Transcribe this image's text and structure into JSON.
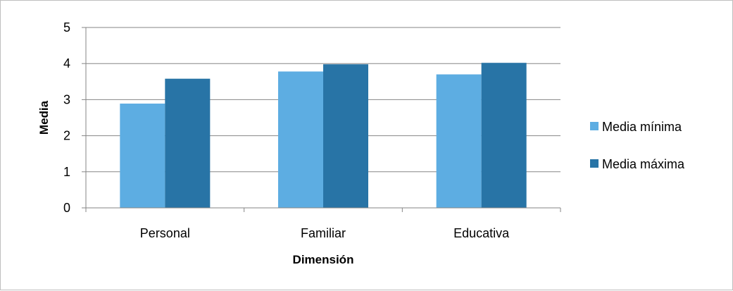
{
  "chart_data": {
    "type": "bar",
    "categories": [
      "Personal",
      "Familiar",
      "Educativa"
    ],
    "series": [
      {
        "name": "Media mínima",
        "values": [
          2.89,
          3.78,
          3.7
        ],
        "color": "#5dade2"
      },
      {
        "name": "Media máxima",
        "values": [
          3.58,
          3.98,
          4.02
        ],
        "color": "#2874a6"
      }
    ],
    "title": "",
    "xlabel": "Dimensión",
    "ylabel": "Media",
    "ylim": [
      0,
      5
    ],
    "yticks": [
      0,
      1,
      2,
      3,
      4,
      5
    ],
    "grid": true,
    "legend_position": "right"
  }
}
